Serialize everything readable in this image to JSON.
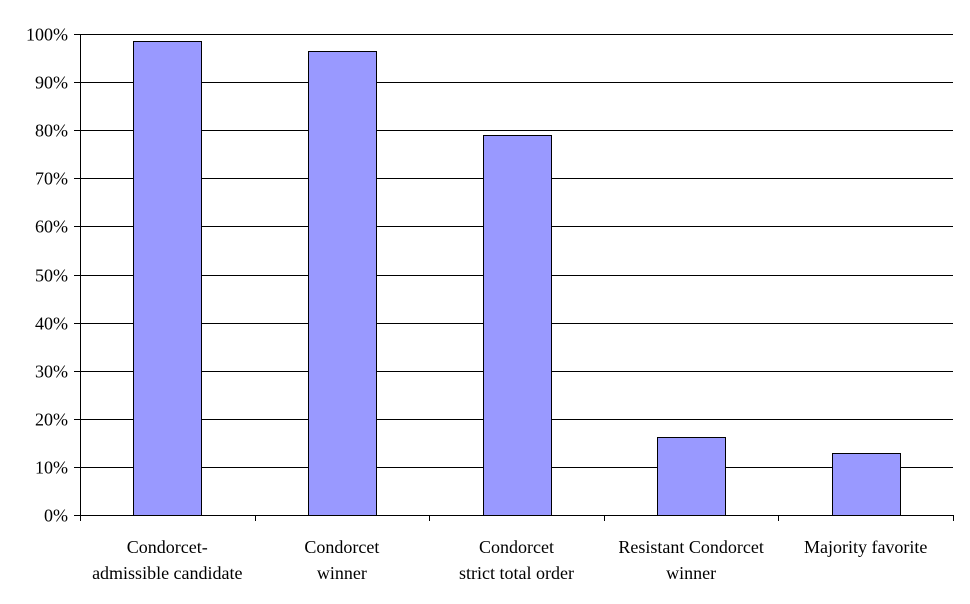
{
  "chart_data": {
    "type": "bar",
    "categories": [
      [
        "Condorcet-",
        "admissible candidate"
      ],
      [
        "Condorcet",
        "winner"
      ],
      [
        "Condorcet",
        "strict total order"
      ],
      [
        "Resistant Condorcet",
        "winner"
      ],
      [
        "Majority favorite"
      ]
    ],
    "values": [
      98.5,
      96.5,
      79,
      16.2,
      12.9
    ],
    "ylim": [
      0,
      100
    ],
    "yticks": [
      "0%",
      "10%",
      "20%",
      "30%",
      "40%",
      "50%",
      "60%",
      "70%",
      "80%",
      "90%",
      "100%"
    ],
    "grid": true,
    "legend": "none",
    "colors": {
      "bar_fill": "#9999ff",
      "bar_stroke": "#000000",
      "grid": "#000000",
      "axis": "#000000"
    }
  }
}
